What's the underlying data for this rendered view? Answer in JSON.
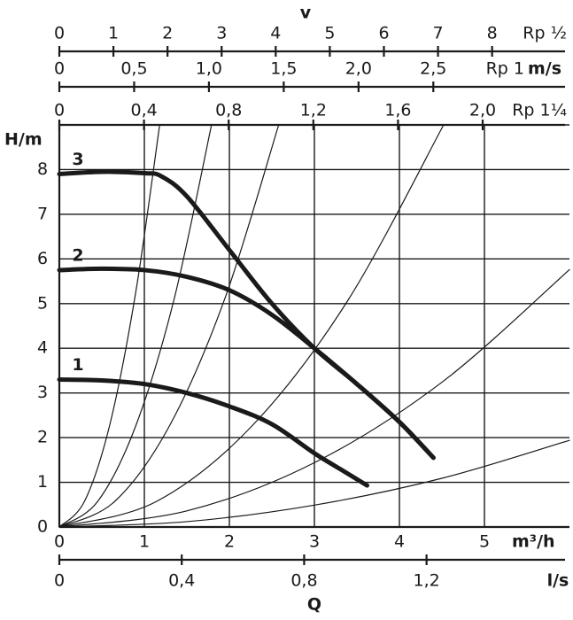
{
  "chart_data": {
    "type": "line",
    "ylabel": "H/m",
    "ylim": [
      0,
      9
    ],
    "yticks": [
      0,
      1,
      2,
      3,
      4,
      5,
      6,
      7,
      8
    ],
    "xlabel": "m³/h",
    "xlim": [
      0,
      6
    ],
    "xticks": [
      0,
      1,
      2,
      3,
      4,
      5
    ],
    "grid": true,
    "color": "#1a1a1a",
    "series": [
      {
        "name": "1",
        "x": [
          0,
          0.5,
          1,
          1.5,
          2,
          2.5,
          3,
          3.3,
          3.62
        ],
        "values": [
          3.3,
          3.28,
          3.2,
          3.0,
          2.7,
          2.3,
          1.65,
          1.3,
          0.93
        ]
      },
      {
        "name": "2",
        "x": [
          0,
          0.5,
          1,
          1.5,
          2,
          2.5,
          3,
          3.5,
          4,
          4.4
        ],
        "values": [
          5.75,
          5.78,
          5.75,
          5.6,
          5.3,
          4.75,
          4.0,
          3.2,
          2.35,
          1.55
        ]
      },
      {
        "name": "3",
        "x": [
          0,
          0.5,
          1,
          1.2,
          1.5,
          2,
          2.5,
          3,
          3.5,
          4,
          4.4
        ],
        "values": [
          7.9,
          7.95,
          7.92,
          7.85,
          7.4,
          6.2,
          5.0,
          4.0,
          3.2,
          2.35,
          1.55
        ]
      }
    ],
    "system_curves": [
      {
        "x": [
          0,
          0.3,
          0.6,
          0.9,
          1.18
        ],
        "values": [
          0,
          0.59,
          2.34,
          5.27,
          9
        ]
      },
      {
        "x": [
          0,
          0.45,
          0.9,
          1.35,
          1.79
        ],
        "values": [
          0,
          0.57,
          2.27,
          5.1,
          9
        ]
      },
      {
        "x": [
          0,
          0.65,
          1.3,
          1.95,
          2.58
        ],
        "values": [
          0,
          0.57,
          2.28,
          5.13,
          9
        ]
      },
      {
        "x": [
          0,
          1.13,
          2.26,
          3.39,
          4.52
        ],
        "values": [
          0,
          0.56,
          2.25,
          5.06,
          9
        ]
      },
      {
        "x": [
          0,
          1.5,
          3,
          4.5,
          6
        ],
        "values": [
          0,
          0.36,
          1.44,
          3.24,
          5.76
        ]
      },
      {
        "x": [
          0,
          1.5,
          3,
          4.5,
          6
        ],
        "values": [
          0,
          0.12,
          0.49,
          1.09,
          1.94
        ]
      }
    ],
    "velocity_label": "v",
    "velocity_unit": "m/s",
    "velocity_axes": [
      {
        "name": "Rp ½",
        "xlim": [
          0,
          9.43
        ],
        "xticks": [
          0,
          1,
          2,
          3,
          4,
          5,
          6,
          7,
          8
        ]
      },
      {
        "name": "Rp 1",
        "xlim": [
          0,
          3.41
        ],
        "xticks": [
          0,
          {
            "value": 0.5,
            "label": "0,5"
          },
          {
            "value": 1,
            "label": "1,0"
          },
          {
            "value": 1.5,
            "label": "1,5"
          },
          {
            "value": 2,
            "label": "2,0"
          },
          {
            "value": 2.5,
            "label": "2,5"
          }
        ]
      },
      {
        "name": "Rp 1¼",
        "xlim": [
          0,
          2.41
        ],
        "xticks": [
          0,
          {
            "value": 0.4,
            "label": "0,4"
          },
          {
            "value": 0.8,
            "label": "0,8"
          },
          {
            "value": 1.2,
            "label": "1,2"
          },
          {
            "value": 1.6,
            "label": "1,6"
          },
          {
            "value": 2,
            "label": "2,0"
          }
        ]
      }
    ],
    "flow_axis": {
      "name": "l/s",
      "xlim": [
        0,
        1.667
      ],
      "xticks": [
        0,
        {
          "value": 0.4,
          "label": "0,4"
        },
        {
          "value": 0.8,
          "label": "0,8"
        },
        {
          "value": 1.2,
          "label": "1,2"
        }
      ]
    },
    "flow_label": "Q"
  }
}
